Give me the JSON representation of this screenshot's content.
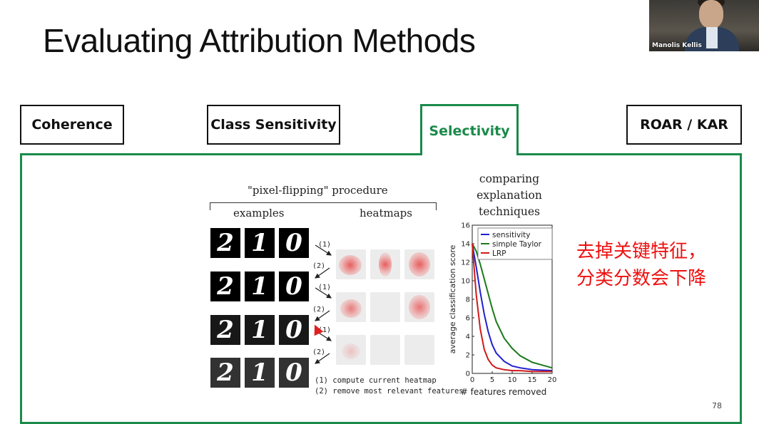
{
  "slide": {
    "title": "Evaluating Attribution Methods",
    "page_number": "78"
  },
  "tabs": [
    {
      "label": "Coherence",
      "active": false
    },
    {
      "label": "Class Sensitivity",
      "active": false
    },
    {
      "label": "Selectivity",
      "active": true
    },
    {
      "label": "ROAR / KAR",
      "active": false
    }
  ],
  "colors": {
    "accent": "#1a8a4a",
    "annotation": "#ee1111"
  },
  "webcam": {
    "name": "Manolis Kellis"
  },
  "figure": {
    "procedure_title": "\"pixel-flipping\" procedure",
    "examples_label": "examples",
    "heatmaps_label": "heatmaps",
    "digits": [
      "2",
      "1",
      "0"
    ],
    "step_labels": [
      "(1)",
      "(2)",
      "(1)",
      "(2)",
      "(1)",
      "(2)"
    ],
    "note1": "(1) compute current heatmap",
    "note2": "(2) remove most relevant features"
  },
  "annotation": {
    "line1": "去掉关键特征，",
    "line2": "分类分数会下降"
  },
  "chart_data": {
    "type": "line",
    "title": "comparing explanation techniques",
    "xlabel": "# features removed",
    "ylabel": "average classification score",
    "xlim": [
      0,
      20
    ],
    "ylim": [
      0,
      16
    ],
    "xticks": [
      0,
      5,
      10,
      15,
      20
    ],
    "yticks": [
      0,
      2,
      4,
      6,
      8,
      10,
      12,
      14,
      16
    ],
    "legend_position": "top-right",
    "series": [
      {
        "name": "sensitivity",
        "color": "#1f1fd0",
        "x": [
          0,
          1,
          2,
          3,
          4,
          5,
          6,
          8,
          10,
          12,
          15,
          20
        ],
        "y": [
          14,
          11.5,
          8.8,
          6.4,
          4.5,
          3.1,
          2.2,
          1.3,
          0.8,
          0.6,
          0.4,
          0.3
        ]
      },
      {
        "name": "simple Taylor",
        "color": "#1a7a1a",
        "x": [
          0,
          1,
          2,
          3,
          4,
          5,
          6,
          8,
          10,
          12,
          15,
          20
        ],
        "y": [
          14,
          13.2,
          11.8,
          10.2,
          8.6,
          7.0,
          5.6,
          3.8,
          2.7,
          1.9,
          1.2,
          0.6
        ]
      },
      {
        "name": "LRP",
        "color": "#d01a1a",
        "x": [
          0,
          1,
          2,
          3,
          4,
          5,
          6,
          8,
          10,
          12,
          15,
          20
        ],
        "y": [
          14,
          8.5,
          4.8,
          2.6,
          1.5,
          0.9,
          0.6,
          0.4,
          0.3,
          0.3,
          0.2,
          0.2
        ]
      }
    ]
  }
}
